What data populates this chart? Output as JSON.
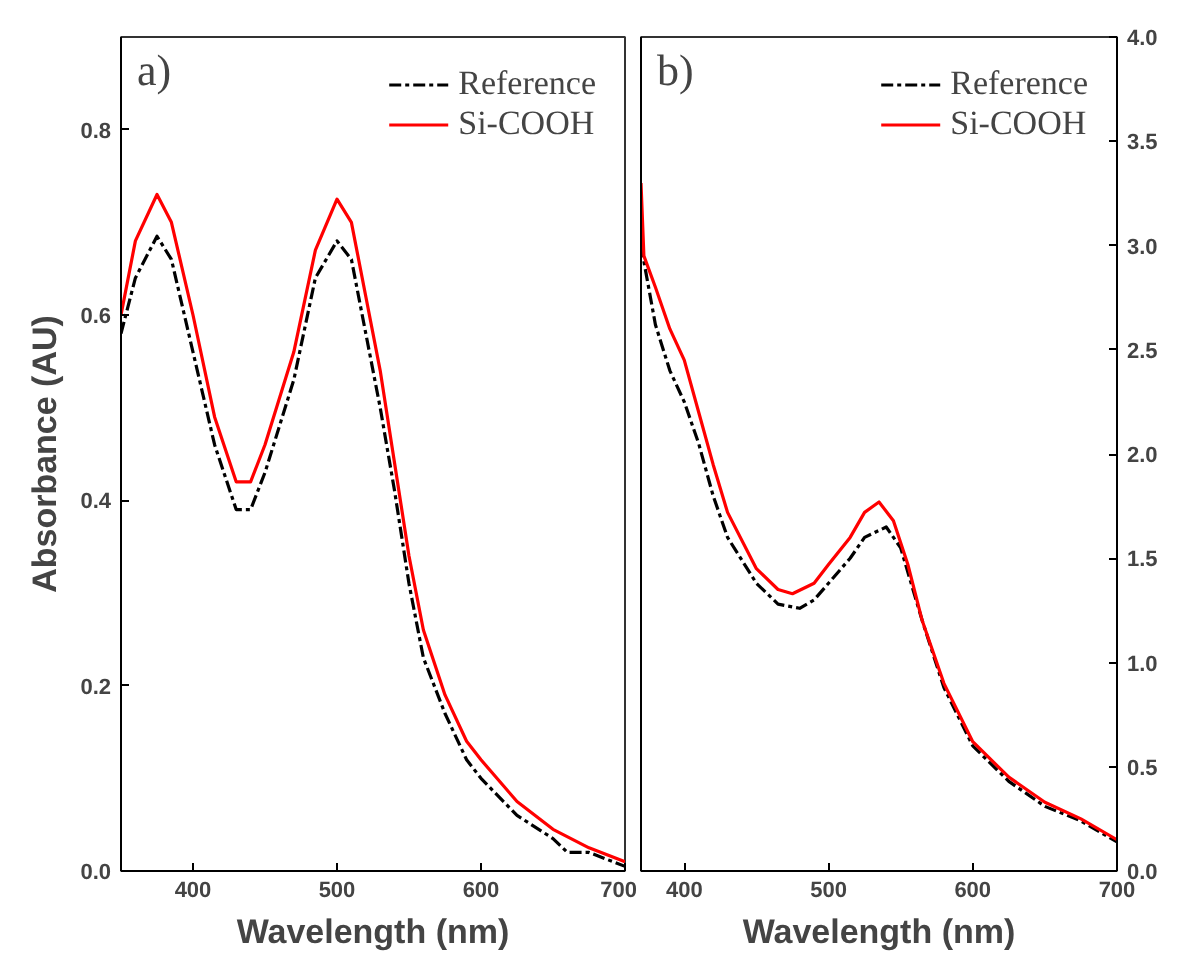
{
  "chart_data": [
    {
      "type": "line",
      "title": "a)",
      "xlabel": "Wavelength (nm)",
      "ylabel": "Absorbance (AU)",
      "xlim": [
        350,
        700
      ],
      "xticks": [
        400,
        500,
        600,
        700
      ],
      "ylim": [
        0,
        0.9
      ],
      "yticks": [
        {
          "value": 0,
          "label": "0.0"
        },
        0.2,
        0.4,
        0.6,
        0.8
      ],
      "grid": false,
      "legend": "top right",
      "series": [
        {
          "name": "Reference",
          "color": "#000000",
          "line_style": "dashed",
          "x": [
            350,
            360,
            375,
            385,
            400,
            415,
            430,
            440,
            450,
            470,
            485,
            500,
            510,
            520,
            530,
            540,
            550,
            560,
            575,
            590,
            600,
            625,
            650,
            660,
            675,
            700
          ],
          "values": [
            0.58,
            0.64,
            0.685,
            0.66,
            0.56,
            0.46,
            0.39,
            0.39,
            0.43,
            0.53,
            0.64,
            0.68,
            0.66,
            0.58,
            0.5,
            0.41,
            0.31,
            0.23,
            0.17,
            0.12,
            0.1,
            0.06,
            0.035,
            0.02,
            0.02,
            0.005
          ]
        },
        {
          "name": "Si-COOH",
          "color": "#ff0000",
          "line_style": "solid",
          "x": [
            350,
            360,
            375,
            385,
            400,
            415,
            430,
            440,
            450,
            470,
            485,
            500,
            510,
            520,
            530,
            540,
            550,
            560,
            575,
            590,
            600,
            625,
            650,
            675,
            700
          ],
          "values": [
            0.6,
            0.68,
            0.73,
            0.7,
            0.6,
            0.49,
            0.42,
            0.42,
            0.46,
            0.56,
            0.67,
            0.725,
            0.7,
            0.62,
            0.54,
            0.44,
            0.34,
            0.26,
            0.19,
            0.14,
            0.12,
            0.075,
            0.045,
            0.025,
            0.01
          ]
        }
      ]
    },
    {
      "type": "line",
      "title": "b)",
      "xlabel": "Wavelength (nm)",
      "xlim": [
        370,
        700
      ],
      "xticks": [
        400,
        500,
        600,
        700
      ],
      "y2lim": [
        0,
        4
      ],
      "y2ticks": [
        {
          "value": 0,
          "label": "0.0"
        },
        0.5,
        {
          "value": 1,
          "label": "1.0"
        },
        1.5,
        {
          "value": 2,
          "label": "2.0"
        },
        2.5,
        {
          "value": 3,
          "label": "3.0"
        },
        3.5,
        {
          "value": 4,
          "label": "4.0"
        }
      ],
      "grid": false,
      "legend": "top right",
      "series": [
        {
          "name": "Reference",
          "color": "#000000",
          "line_style": "dashed",
          "axis": "y2",
          "x": [
            370,
            380,
            390,
            400,
            410,
            420,
            430,
            450,
            465,
            480,
            490,
            500,
            515,
            525,
            540,
            550,
            565,
            580,
            600,
            625,
            650,
            675,
            700
          ],
          "values": [
            3.0,
            2.62,
            2.4,
            2.25,
            2.05,
            1.8,
            1.6,
            1.38,
            1.28,
            1.26,
            1.3,
            1.38,
            1.5,
            1.6,
            1.65,
            1.55,
            1.2,
            0.88,
            0.6,
            0.43,
            0.31,
            0.24,
            0.14
          ]
        },
        {
          "name": "Si-COOH",
          "color": "#ff0000",
          "line_style": "solid",
          "axis": "y2",
          "x": [
            370,
            372,
            380,
            390,
            400,
            410,
            420,
            430,
            450,
            465,
            475,
            490,
            500,
            515,
            525,
            535,
            545,
            555,
            565,
            580,
            600,
            625,
            650,
            675,
            700
          ],
          "values": [
            3.3,
            2.95,
            2.8,
            2.6,
            2.45,
            2.2,
            1.95,
            1.72,
            1.45,
            1.35,
            1.33,
            1.38,
            1.47,
            1.6,
            1.72,
            1.77,
            1.68,
            1.47,
            1.2,
            0.9,
            0.62,
            0.45,
            0.33,
            0.25,
            0.15
          ]
        }
      ]
    }
  ]
}
